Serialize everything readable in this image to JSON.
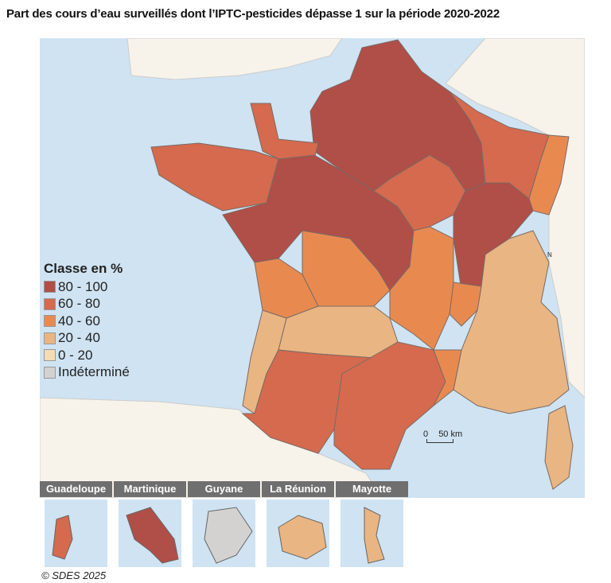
{
  "title": "Part des cours d’eau surveillés dont l’IPTC-pesticides dépasse 1 sur la période 2020-2022",
  "colors": {
    "sea": "#cfe3f2",
    "land_outside": "#f8f3ea",
    "border": "#7a6a66"
  },
  "legend": {
    "title": "Classe en %",
    "classes": [
      {
        "label": "80 - 100",
        "color": "#b04e48"
      },
      {
        "label": "60 - 80",
        "color": "#d56a4e"
      },
      {
        "label": "40 - 60",
        "color": "#e88a50"
      },
      {
        "label": "20 - 40",
        "color": "#e9b582"
      },
      {
        "label": "0 - 20",
        "color": "#f6dcb4"
      },
      {
        "label": "Indéterminé",
        "color": "#d4d2d0"
      }
    ]
  },
  "scale": {
    "zero": "0",
    "label": "50 km"
  },
  "north": "N",
  "insets": [
    {
      "name": "Guadeloupe",
      "class": "60 - 80"
    },
    {
      "name": "Martinique",
      "class": "80 - 100"
    },
    {
      "name": "Guyane",
      "class": "Indéterminé"
    },
    {
      "name": "La Réunion",
      "class": "20 - 40"
    },
    {
      "name": "Mayotte",
      "class": "20 - 40"
    }
  ],
  "copyright": "© SDES 2025"
}
